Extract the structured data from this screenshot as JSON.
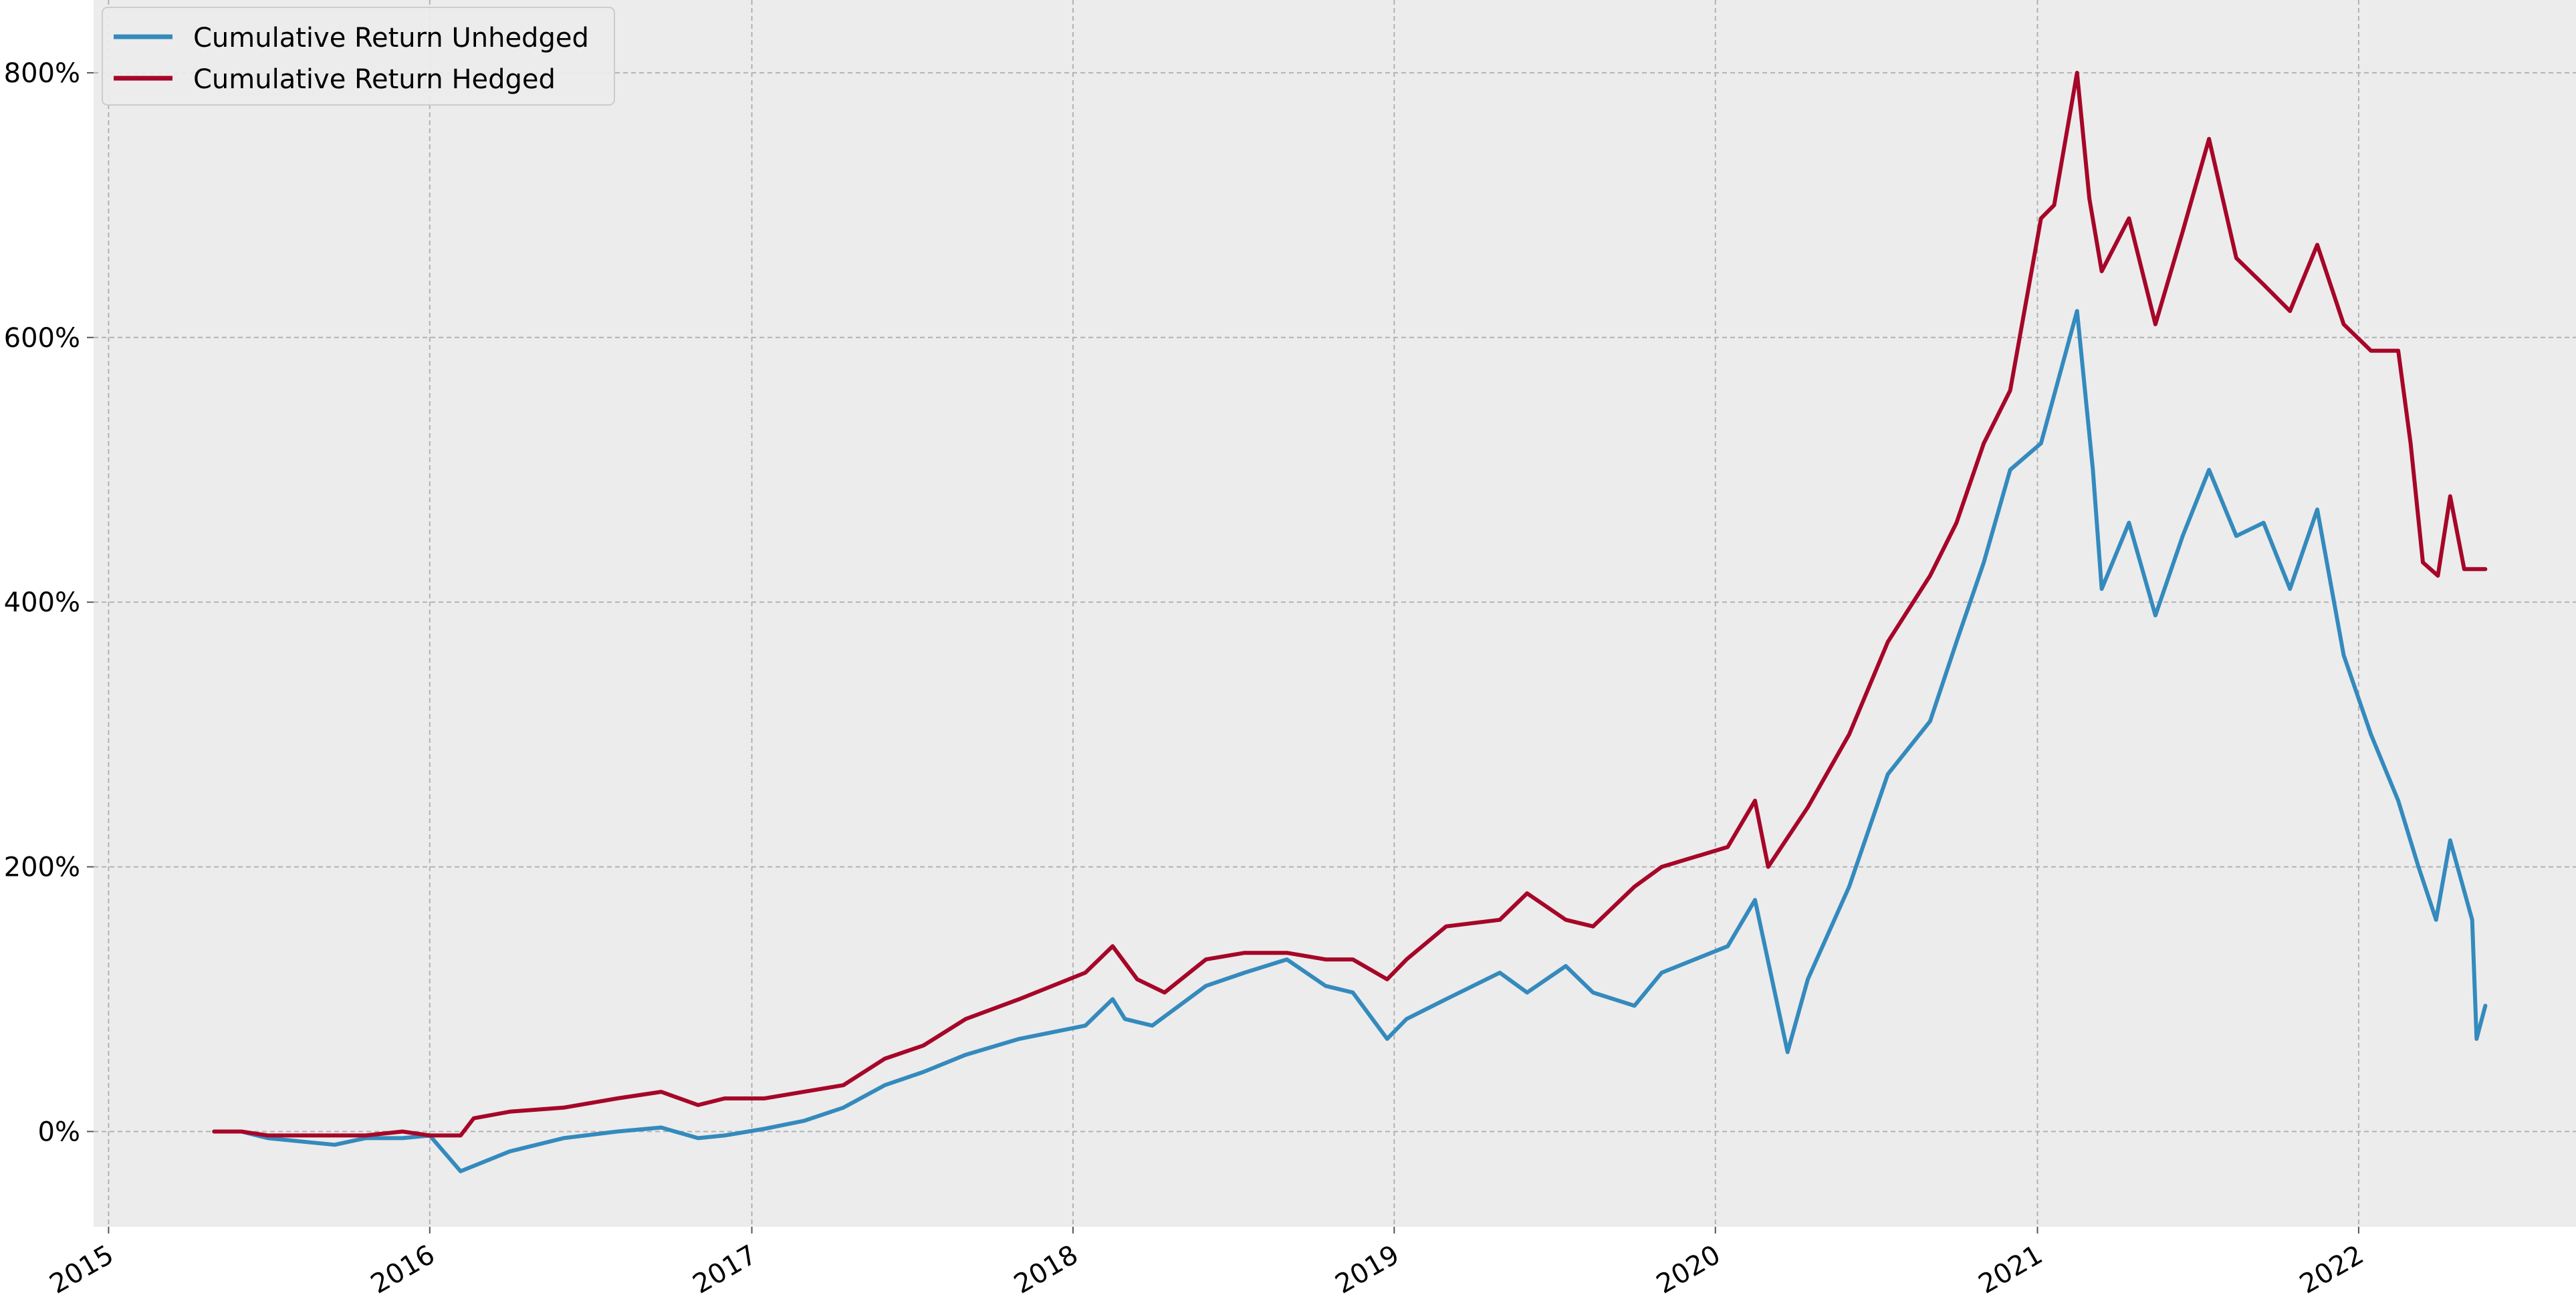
{
  "chart_data": {
    "type": "line",
    "title": "",
    "xlabel": "",
    "ylabel": "",
    "x_tick_labels": [
      "2015",
      "2016",
      "2017",
      "2018",
      "2019",
      "2020",
      "2021",
      "2022"
    ],
    "y_tick_labels": [
      "0%",
      "200%",
      "400%",
      "600%",
      "800%"
    ],
    "y_ticks": [
      0,
      200,
      400,
      600,
      800
    ],
    "x_ticks": [
      "2015-01-01",
      "2016-01-01",
      "2017-01-01",
      "2018-01-01",
      "2019-01-01",
      "2020-01-01",
      "2021-01-01",
      "2022-01-01"
    ],
    "xlim": [
      "2014-12-15",
      "2022-09-05"
    ],
    "ylim": [
      -72,
      855
    ],
    "grid": true,
    "legend_placement": "top-left",
    "background": "#ececec",
    "series": [
      {
        "name": "Cumulative Return Unhedged",
        "color": "#348abd",
        "x": [
          "2015-05-01",
          "2015-06-01",
          "2015-07-01",
          "2015-08-15",
          "2015-09-15",
          "2015-10-20",
          "2015-12-01",
          "2016-01-01",
          "2016-02-05",
          "2016-04-01",
          "2016-06-01",
          "2016-08-01",
          "2016-09-20",
          "2016-11-01",
          "2016-12-01",
          "2017-01-15",
          "2017-03-01",
          "2017-04-15",
          "2017-06-01",
          "2017-07-15",
          "2017-09-01",
          "2017-11-01",
          "2018-01-15",
          "2018-02-15",
          "2018-03-01",
          "2018-04-01",
          "2018-06-01",
          "2018-07-15",
          "2018-09-01",
          "2018-10-15",
          "2018-11-15",
          "2018-12-24",
          "2019-01-15",
          "2019-03-01",
          "2019-05-01",
          "2019-06-01",
          "2019-07-15",
          "2019-08-15",
          "2019-10-01",
          "2019-11-01",
          "2020-01-15",
          "2020-02-15",
          "2020-03-23",
          "2020-04-15",
          "2020-06-01",
          "2020-07-15",
          "2020-09-01",
          "2020-10-01",
          "2020-11-01",
          "2020-12-01",
          "2021-01-05",
          "2021-02-15",
          "2021-03-05",
          "2021-03-15",
          "2021-04-15",
          "2021-05-15",
          "2021-06-15",
          "2021-07-15",
          "2021-08-15",
          "2021-09-15",
          "2021-10-15",
          "2021-11-15",
          "2021-12-15",
          "2022-01-15",
          "2022-02-15",
          "2022-03-10",
          "2022-03-30",
          "2022-04-15",
          "2022-05-10",
          "2022-05-15",
          "2022-05-25"
        ],
        "values": [
          0,
          0,
          -5,
          -8,
          -10,
          -5,
          -5,
          -3,
          -30,
          -15,
          -5,
          0,
          3,
          -5,
          -3,
          2,
          8,
          18,
          35,
          45,
          58,
          70,
          80,
          100,
          85,
          80,
          110,
          120,
          130,
          110,
          105,
          70,
          85,
          100,
          120,
          105,
          125,
          105,
          95,
          120,
          140,
          175,
          60,
          115,
          185,
          270,
          310,
          370,
          430,
          500,
          520,
          620,
          500,
          410,
          460,
          390,
          450,
          500,
          450,
          460,
          410,
          470,
          360,
          300,
          250,
          200,
          160,
          220,
          160,
          70,
          95
        ]
      },
      {
        "name": "Cumulative Return Hedged",
        "color": "#a60628",
        "x": [
          "2015-05-01",
          "2015-06-01",
          "2015-07-01",
          "2015-08-15",
          "2015-09-15",
          "2015-10-20",
          "2015-12-01",
          "2016-01-01",
          "2016-02-05",
          "2016-02-20",
          "2016-04-01",
          "2016-06-01",
          "2016-08-01",
          "2016-09-20",
          "2016-11-01",
          "2016-12-01",
          "2017-01-15",
          "2017-03-01",
          "2017-04-15",
          "2017-06-01",
          "2017-07-15",
          "2017-09-01",
          "2017-11-01",
          "2018-01-15",
          "2018-02-15",
          "2018-03-15",
          "2018-04-15",
          "2018-06-01",
          "2018-07-15",
          "2018-09-01",
          "2018-10-15",
          "2018-11-15",
          "2018-12-24",
          "2019-01-15",
          "2019-03-01",
          "2019-05-01",
          "2019-06-01",
          "2019-07-15",
          "2019-08-15",
          "2019-10-01",
          "2019-11-01",
          "2020-01-15",
          "2020-02-15",
          "2020-03-01",
          "2020-04-15",
          "2020-06-01",
          "2020-07-15",
          "2020-09-01",
          "2020-10-01",
          "2020-11-01",
          "2020-12-01",
          "2021-01-05",
          "2021-01-20",
          "2021-02-15",
          "2021-03-01",
          "2021-03-15",
          "2021-04-15",
          "2021-05-15",
          "2021-06-15",
          "2021-07-15",
          "2021-08-15",
          "2021-09-15",
          "2021-10-15",
          "2021-11-15",
          "2021-12-15",
          "2022-01-15",
          "2022-02-15",
          "2022-03-01",
          "2022-03-15",
          "2022-04-01",
          "2022-04-15",
          "2022-05-01",
          "2022-05-25"
        ],
        "values": [
          0,
          0,
          -3,
          -3,
          -3,
          -3,
          0,
          -3,
          -3,
          10,
          15,
          18,
          25,
          30,
          20,
          25,
          25,
          30,
          35,
          55,
          65,
          85,
          100,
          120,
          140,
          115,
          105,
          130,
          135,
          135,
          130,
          130,
          115,
          130,
          155,
          160,
          180,
          160,
          155,
          185,
          200,
          215,
          250,
          200,
          245,
          300,
          370,
          420,
          460,
          520,
          560,
          690,
          700,
          800,
          705,
          650,
          690,
          610,
          680,
          750,
          660,
          640,
          620,
          670,
          610,
          590,
          590,
          520,
          430,
          420,
          480,
          425,
          425
        ]
      }
    ]
  }
}
